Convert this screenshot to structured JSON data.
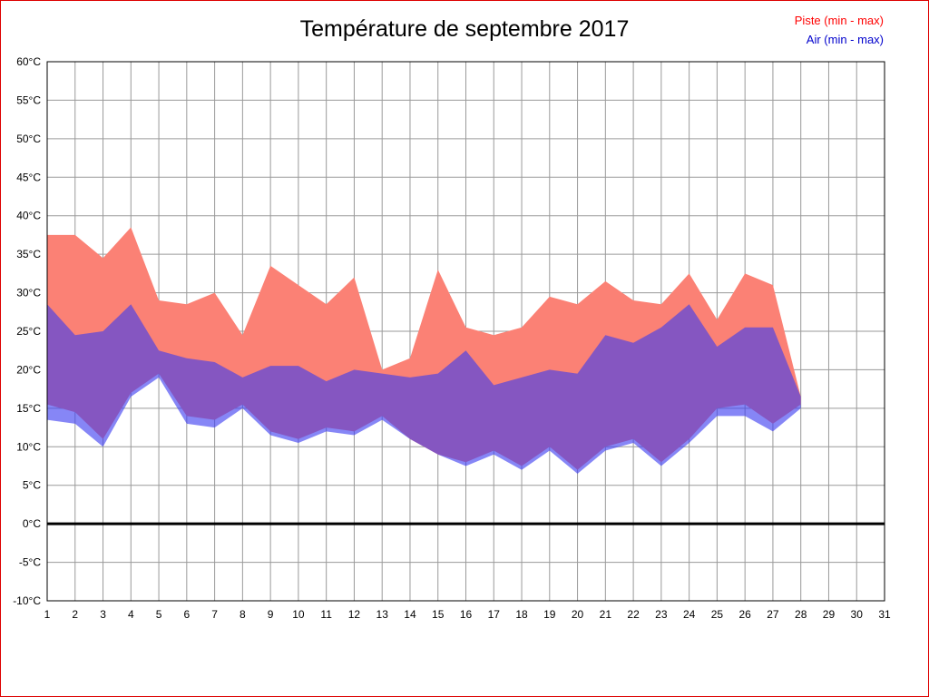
{
  "frame": {
    "border_color": "#dd0000"
  },
  "chart_data": {
    "type": "area",
    "title": "Température de septembre 2017",
    "legend": [
      {
        "name": "piste",
        "label": "Piste (min - max)",
        "color": "#ff0000"
      },
      {
        "name": "air",
        "label": "Air (min - max)",
        "color": "#0000cc"
      }
    ],
    "x_axis": {
      "min": 1,
      "max": 31,
      "tick_step": 1,
      "tick_labels": [
        "1",
        "2",
        "3",
        "4",
        "5",
        "6",
        "7",
        "8",
        "9",
        "10",
        "11",
        "12",
        "13",
        "14",
        "15",
        "16",
        "17",
        "18",
        "19",
        "20",
        "21",
        "22",
        "23",
        "24",
        "25",
        "26",
        "27",
        "28",
        "29",
        "30",
        "31"
      ]
    },
    "y_axis": {
      "min": -10,
      "max": 60,
      "tick_step": 5,
      "tick_suffix": "°C"
    },
    "ylim": [
      -10,
      60
    ],
    "grid": true,
    "zero_line": 0,
    "days": [
      1,
      2,
      3,
      4,
      5,
      6,
      7,
      8,
      9,
      10,
      11,
      12,
      13,
      14,
      15,
      16,
      17,
      18,
      19,
      20,
      21,
      22,
      23,
      24,
      25,
      26,
      27,
      28
    ],
    "bands": [
      {
        "name": "piste",
        "label": "Piste (min - max)",
        "fill": "#fb8175",
        "max": [
          37.5,
          37.5,
          34.5,
          38.5,
          29,
          28.5,
          30,
          24.5,
          33.5,
          31,
          28.5,
          32,
          20,
          21.5,
          33,
          25.5,
          24.5,
          25.5,
          29.5,
          28.5,
          31.5,
          29,
          28.5,
          32.5,
          26.5,
          32.5,
          31,
          16.5
        ],
        "min": [
          15.5,
          14.5,
          11,
          17,
          19.5,
          14,
          13.5,
          15.5,
          12,
          11,
          12.5,
          12,
          14,
          11,
          9,
          8,
          9.5,
          7.5,
          10,
          7,
          10,
          11,
          8,
          11,
          15,
          15.5,
          13,
          15.5
        ]
      },
      {
        "name": "air",
        "label": "Air (min - max)",
        "fill": "rgba(60,60,240,0.62)",
        "max": [
          28.5,
          24.5,
          25,
          28.5,
          22.5,
          21.5,
          21,
          19,
          20.5,
          20.5,
          18.5,
          20,
          19.5,
          19,
          19.5,
          22.5,
          18,
          19,
          20,
          19.5,
          24.5,
          23.5,
          25.5,
          28.5,
          23,
          25.5,
          25.5,
          16.5
        ],
        "min": [
          13.5,
          13,
          10,
          16.5,
          19,
          13,
          12.5,
          15,
          11.5,
          10.5,
          12,
          11.5,
          13.5,
          11,
          9,
          7.5,
          9,
          7,
          9.5,
          6.5,
          9.5,
          10.5,
          7.5,
          10.5,
          14,
          14,
          12,
          15
        ]
      }
    ],
    "grid_color": "#9a9a9a",
    "axis_color": "#000000"
  }
}
